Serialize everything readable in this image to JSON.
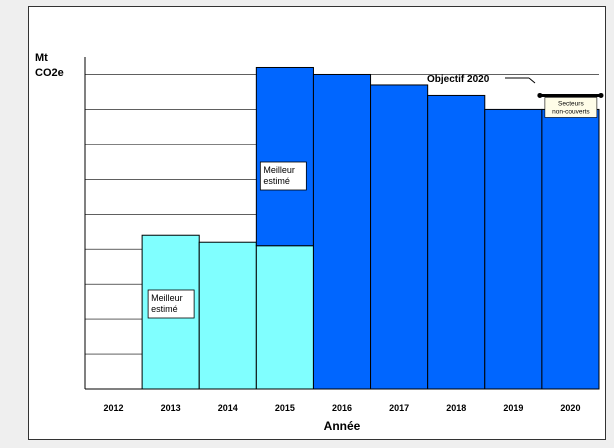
{
  "chart_data": {
    "type": "bar",
    "title": "",
    "xlabel": "Année",
    "ylabel": "Mt CO2e",
    "ylabel_lines": [
      "Mt",
      "CO2e"
    ],
    "categories": [
      "2012",
      "2013",
      "2014",
      "2015",
      "2016",
      "2017",
      "2018",
      "2019",
      "2020"
    ],
    "ylim": [
      0,
      9.5
    ],
    "grid": true,
    "series": [
      {
        "values": [
          0,
          4.4,
          4.2,
          4.1,
          9.0,
          8.7,
          8.4,
          8.0,
          8.0
        ],
        "color": "#80ffff"
      },
      {
        "values": [
          0,
          0,
          0,
          5.1,
          0,
          0,
          0,
          0,
          0
        ],
        "color": "#0066ff"
      }
    ],
    "bar_colors": [
      "#80ffff",
      "#80ffff",
      "#80ffff",
      "#80ffff",
      "#0066ff",
      "#0066ff",
      "#0066ff",
      "#0066ff",
      "#0066ff"
    ],
    "annotations": {
      "best_estimate_label": [
        "Meilleur",
        "estimé"
      ],
      "target_label": "Objectif 2020",
      "target_value": 8.4,
      "sector_label": [
        "Secteurs",
        "non-couverts"
      ]
    }
  }
}
